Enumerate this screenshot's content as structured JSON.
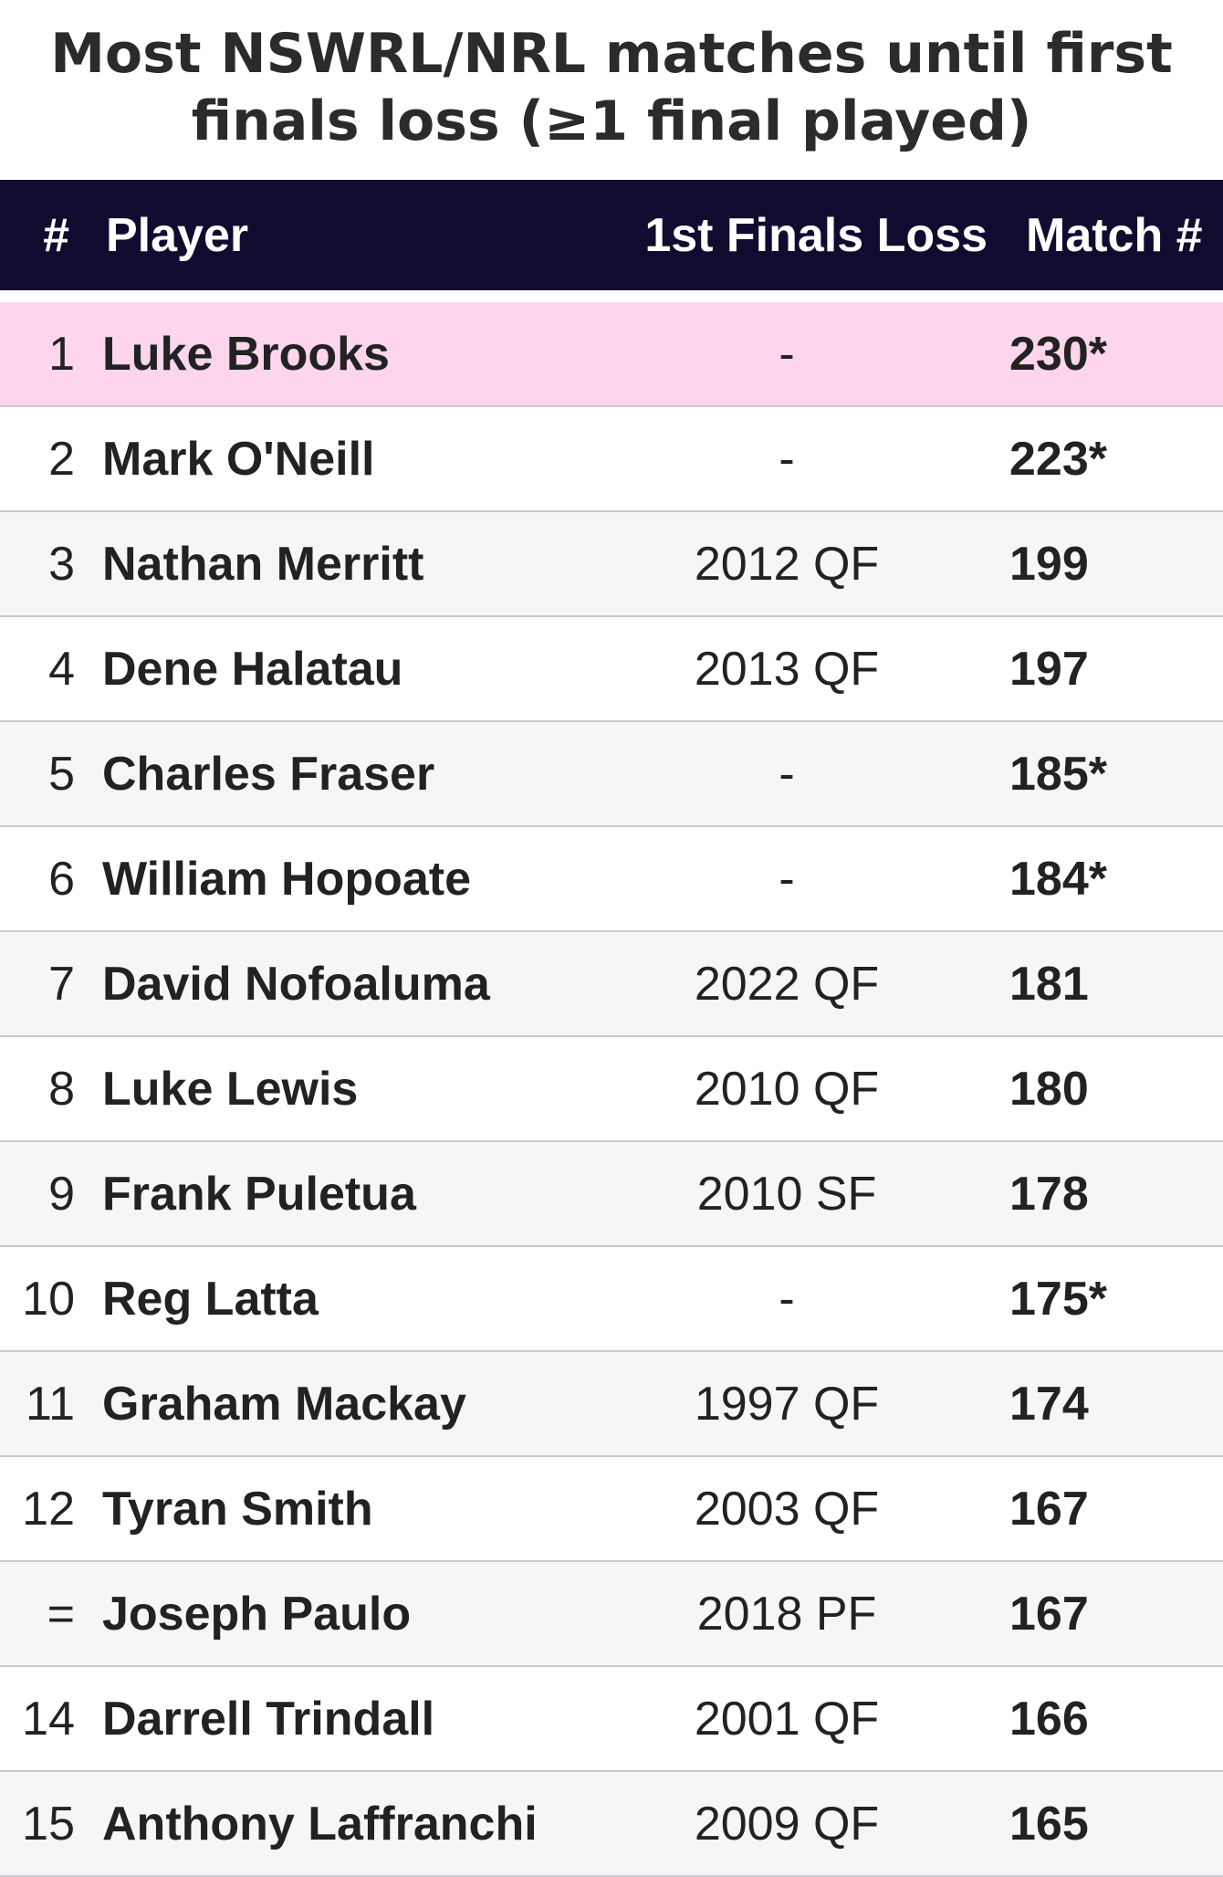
{
  "title": {
    "line1": "Most NSWRL/NRL matches until first",
    "line2": "finals loss (≥1 final played)"
  },
  "table": {
    "headers": {
      "rank": "#",
      "player": "Player",
      "loss": "1st Finals Loss",
      "match": "Match #"
    },
    "rows": [
      {
        "rank": "1",
        "player": "Luke Brooks",
        "loss": "-",
        "match": "230*"
      },
      {
        "rank": "2",
        "player": "Mark O'Neill",
        "loss": "-",
        "match": "223*"
      },
      {
        "rank": "3",
        "player": "Nathan Merritt",
        "loss": "2012 QF",
        "match": "199"
      },
      {
        "rank": "4",
        "player": "Dene Halatau",
        "loss": "2013 QF",
        "match": "197"
      },
      {
        "rank": "5",
        "player": "Charles Fraser",
        "loss": "-",
        "match": "185*"
      },
      {
        "rank": "6",
        "player": "William Hopoate",
        "loss": "-",
        "match": "184*"
      },
      {
        "rank": "7",
        "player": "David Nofoaluma",
        "loss": "2022 QF",
        "match": "181"
      },
      {
        "rank": "8",
        "player": "Luke Lewis",
        "loss": "2010 QF",
        "match": "180"
      },
      {
        "rank": "9",
        "player": "Frank Puletua",
        "loss": "2010 SF",
        "match": "178"
      },
      {
        "rank": "10",
        "player": "Reg Latta",
        "loss": "-",
        "match": "175*"
      },
      {
        "rank": "11",
        "player": "Graham Mackay",
        "loss": "1997 QF",
        "match": "174"
      },
      {
        "rank": "12",
        "player": "Tyran Smith",
        "loss": "2003 QF",
        "match": "167"
      },
      {
        "rank": "=",
        "player": "Joseph Paulo",
        "loss": "2018 PF",
        "match": "167"
      },
      {
        "rank": "14",
        "player": "Darrell Trindall",
        "loss": "2001 QF",
        "match": "166"
      },
      {
        "rank": "15",
        "player": "Anthony Laffranchi",
        "loss": "2009 QF",
        "match": "165"
      }
    ]
  },
  "colors": {
    "header_bg": "#120b30",
    "highlight_row": "#fdd5ec",
    "alt_row": "#f6f6f6",
    "divider": "#c9c9cf"
  }
}
